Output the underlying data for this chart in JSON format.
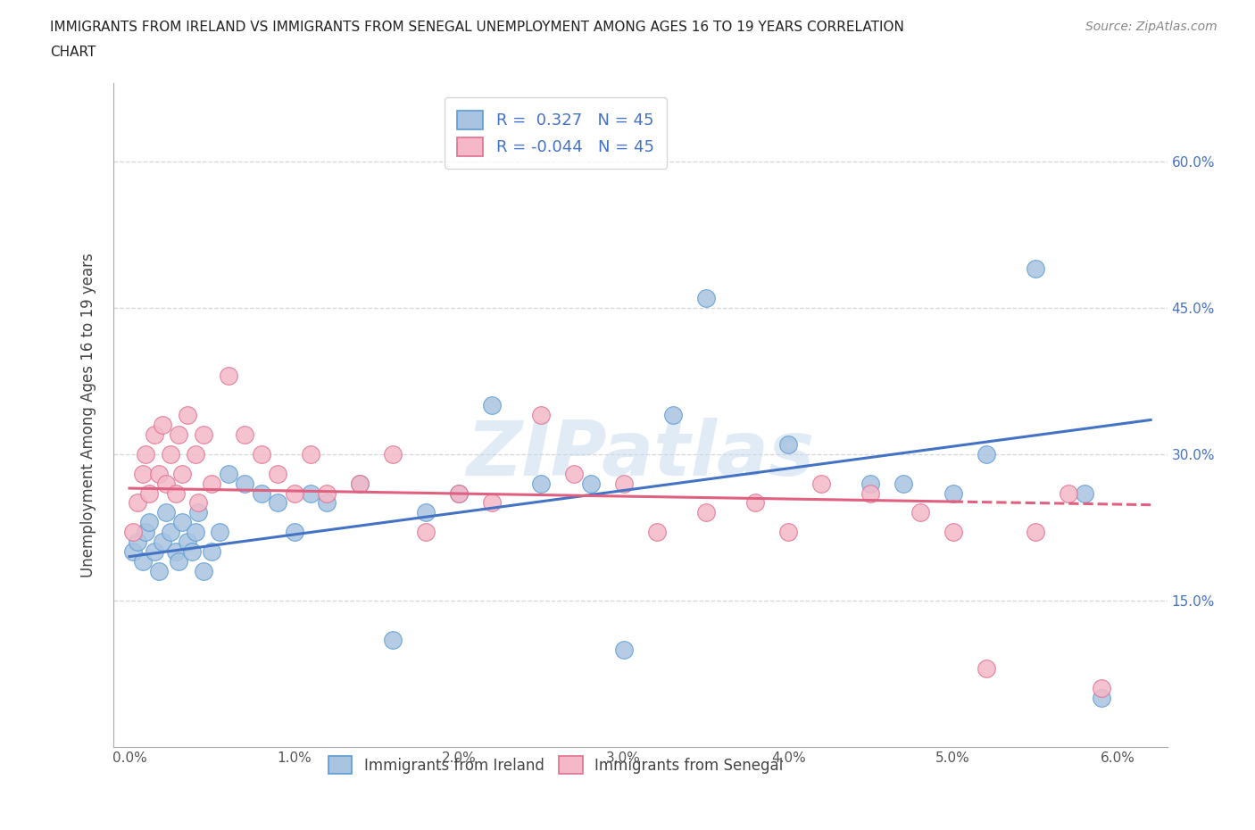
{
  "title_line1": "IMMIGRANTS FROM IRELAND VS IMMIGRANTS FROM SENEGAL UNEMPLOYMENT AMONG AGES 16 TO 19 YEARS CORRELATION",
  "title_line2": "CHART",
  "source": "Source: ZipAtlas.com",
  "ylabel": "Unemployment Among Ages 16 to 19 years",
  "x_tick_vals": [
    0.0,
    0.01,
    0.02,
    0.03,
    0.04,
    0.05,
    0.06
  ],
  "x_tick_labels": [
    "0.0%",
    "1.0%",
    "2.0%",
    "3.0%",
    "4.0%",
    "5.0%",
    "6.0%"
  ],
  "y_tick_vals": [
    0.15,
    0.3,
    0.45,
    0.6
  ],
  "y_tick_labels": [
    "15.0%",
    "30.0%",
    "45.0%",
    "60.0%"
  ],
  "R_ireland": 0.327,
  "N_ireland": 45,
  "R_senegal": -0.044,
  "N_senegal": 45,
  "ireland_fill": "#a8c4e0",
  "ireland_edge": "#5b9bd5",
  "senegal_fill": "#f4b8c8",
  "senegal_edge": "#e07090",
  "ireland_line_color": "#4472c4",
  "senegal_line_color": "#e06080",
  "watermark": "ZIPatlas",
  "xlim": [
    -0.001,
    0.063
  ],
  "ylim": [
    0.0,
    0.68
  ],
  "ireland_x": [
    0.0002,
    0.0005,
    0.0008,
    0.001,
    0.0012,
    0.0015,
    0.0018,
    0.002,
    0.0022,
    0.0025,
    0.0028,
    0.003,
    0.0032,
    0.0035,
    0.0038,
    0.004,
    0.0042,
    0.0045,
    0.005,
    0.0055,
    0.006,
    0.007,
    0.008,
    0.009,
    0.01,
    0.011,
    0.012,
    0.014,
    0.016,
    0.018,
    0.02,
    0.022,
    0.025,
    0.028,
    0.03,
    0.033,
    0.035,
    0.04,
    0.045,
    0.047,
    0.05,
    0.052,
    0.055,
    0.058,
    0.059
  ],
  "ireland_y": [
    0.2,
    0.21,
    0.19,
    0.22,
    0.23,
    0.2,
    0.18,
    0.21,
    0.24,
    0.22,
    0.2,
    0.19,
    0.23,
    0.21,
    0.2,
    0.22,
    0.24,
    0.18,
    0.2,
    0.22,
    0.28,
    0.27,
    0.26,
    0.25,
    0.22,
    0.26,
    0.25,
    0.27,
    0.11,
    0.24,
    0.26,
    0.35,
    0.27,
    0.27,
    0.1,
    0.34,
    0.46,
    0.31,
    0.27,
    0.27,
    0.26,
    0.3,
    0.49,
    0.26,
    0.05
  ],
  "senegal_x": [
    0.0002,
    0.0005,
    0.0008,
    0.001,
    0.0012,
    0.0015,
    0.0018,
    0.002,
    0.0022,
    0.0025,
    0.0028,
    0.003,
    0.0032,
    0.0035,
    0.004,
    0.0042,
    0.0045,
    0.005,
    0.006,
    0.007,
    0.008,
    0.009,
    0.01,
    0.011,
    0.012,
    0.014,
    0.016,
    0.018,
    0.02,
    0.022,
    0.025,
    0.027,
    0.03,
    0.032,
    0.035,
    0.038,
    0.04,
    0.042,
    0.045,
    0.048,
    0.05,
    0.052,
    0.055,
    0.057,
    0.059
  ],
  "senegal_y": [
    0.22,
    0.25,
    0.28,
    0.3,
    0.26,
    0.32,
    0.28,
    0.33,
    0.27,
    0.3,
    0.26,
    0.32,
    0.28,
    0.34,
    0.3,
    0.25,
    0.32,
    0.27,
    0.38,
    0.32,
    0.3,
    0.28,
    0.26,
    0.3,
    0.26,
    0.27,
    0.3,
    0.22,
    0.26,
    0.25,
    0.34,
    0.28,
    0.27,
    0.22,
    0.24,
    0.25,
    0.22,
    0.27,
    0.26,
    0.24,
    0.22,
    0.08,
    0.22,
    0.26,
    0.06
  ]
}
